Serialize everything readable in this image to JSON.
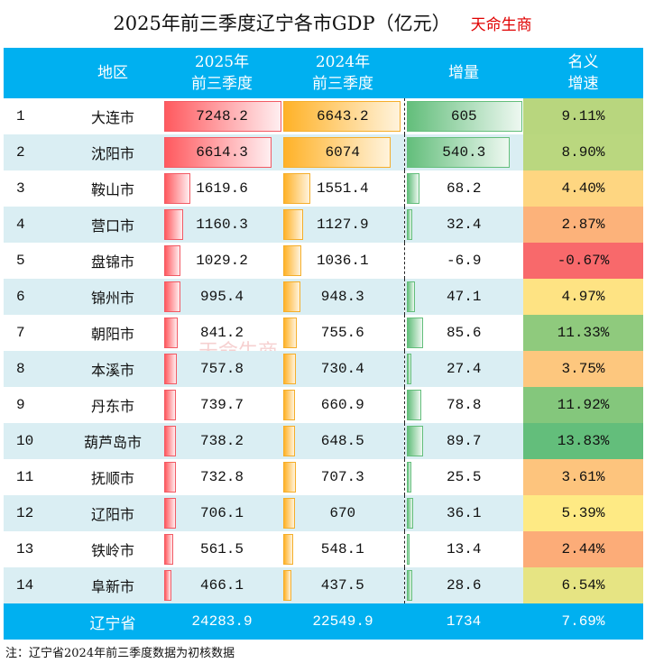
{
  "title": "2025年前三季度辽宁各市GDP（亿元）",
  "brand": "天命生商",
  "watermark": "天命生商",
  "headers": {
    "region": "地区",
    "y2025_1": "2025年",
    "y2025_2": "前三季度",
    "y2024_1": "2024年",
    "y2024_2": "前三季度",
    "increase": "增量",
    "growth_1": "名义",
    "growth_2": "增速"
  },
  "colors": {
    "header": "#00b0f0",
    "row_alt": "#daeef3",
    "bar_2025": "#ff5a5f",
    "bar_2024": "#ffb228",
    "bar_increase": "#63be7b"
  },
  "rows": [
    {
      "rank": "1",
      "name": "大连市",
      "v2025": "7248.2",
      "v2024": "6643.2",
      "inc": "605",
      "growth": "9.11%",
      "color": "#b8d67e"
    },
    {
      "rank": "2",
      "name": "沈阳市",
      "v2025": "6614.3",
      "v2024": "6074",
      "inc": "540.3",
      "growth": "8.90%",
      "color": "#bad77f"
    },
    {
      "rank": "3",
      "name": "鞍山市",
      "v2025": "1619.6",
      "v2024": "1551.4",
      "inc": "68.2",
      "growth": "4.40%",
      "color": "#fed681"
    },
    {
      "rank": "4",
      "name": "营口市",
      "v2025": "1160.3",
      "v2024": "1127.9",
      "inc": "32.4",
      "growth": "2.87%",
      "color": "#fcb27a"
    },
    {
      "rank": "5",
      "name": "盘锦市",
      "v2025": "1029.2",
      "v2024": "1036.1",
      "inc": "-6.9",
      "growth": "-0.67%",
      "color": "#f8696b"
    },
    {
      "rank": "6",
      "name": "锦州市",
      "v2025": "995.4",
      "v2024": "948.3",
      "inc": "47.1",
      "growth": "4.97%",
      "color": "#fee383"
    },
    {
      "rank": "7",
      "name": "朝阳市",
      "v2025": "841.2",
      "v2024": "755.6",
      "inc": "85.6",
      "growth": "11.33%",
      "color": "#8fca7d"
    },
    {
      "rank": "8",
      "name": "本溪市",
      "v2025": "757.8",
      "v2024": "730.4",
      "inc": "27.4",
      "growth": "3.75%",
      "color": "#fdc77e"
    },
    {
      "rank": "9",
      "name": "丹东市",
      "v2025": "739.7",
      "v2024": "660.9",
      "inc": "78.8",
      "growth": "11.92%",
      "color": "#84c77c"
    },
    {
      "rank": "10",
      "name": "葫芦岛市",
      "v2025": "738.2",
      "v2024": "648.5",
      "inc": "89.7",
      "growth": "13.83%",
      "color": "#63be7b"
    },
    {
      "rank": "11",
      "name": "抚顺市",
      "v2025": "732.8",
      "v2024": "707.3",
      "inc": "25.5",
      "growth": "3.61%",
      "color": "#fdc47d"
    },
    {
      "rank": "12",
      "name": "辽阳市",
      "v2025": "706.1",
      "v2024": "670",
      "inc": "36.1",
      "growth": "5.39%",
      "color": "#feea84"
    },
    {
      "rank": "13",
      "name": "铁岭市",
      "v2025": "561.5",
      "v2024": "548.1",
      "inc": "13.4",
      "growth": "2.44%",
      "color": "#fcac78"
    },
    {
      "rank": "14",
      "name": "阜新市",
      "v2025": "466.1",
      "v2024": "437.5",
      "inc": "28.6",
      "growth": "6.54%",
      "color": "#e6e483"
    }
  ],
  "total": {
    "name": "辽宁省",
    "v2025": "24283.9",
    "v2024": "22549.9",
    "inc": "1734",
    "growth": "7.69%"
  },
  "note": "注：辽宁省2024年前三季度数据为初核数据"
}
